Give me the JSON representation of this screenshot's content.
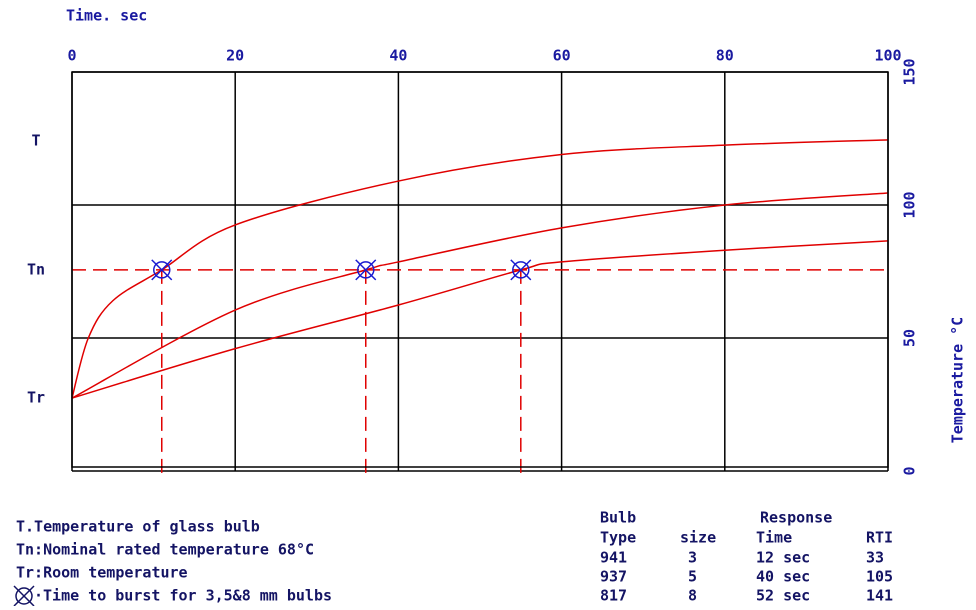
{
  "chart_data": {
    "type": "line",
    "x_axis_label": "Time. sec",
    "y_axis_label": "Temperature °C",
    "xlim": [
      0,
      100
    ],
    "xticks": [
      0,
      20,
      40,
      60,
      80,
      100
    ],
    "ylim": [
      0,
      150
    ],
    "yticks": [
      0,
      50,
      100,
      150
    ],
    "grid": true,
    "left_ticks": [
      {
        "value": 124,
        "label": "T"
      },
      {
        "value": 75.6,
        "label": "Tn"
      },
      {
        "value": 27.4,
        "label": "Tr"
      }
    ],
    "reference_line": {
      "y": 75.6,
      "color": "#e00000"
    },
    "series": [
      {
        "color": "#e00000",
        "x": [
          0,
          2,
          5,
          11,
          20,
          40,
          60,
          80,
          100
        ],
        "values": [
          27.4,
          50,
          64,
          75.6,
          92.5,
          109,
          119,
          122.5,
          124.5
        ]
      },
      {
        "color": "#e00000",
        "x": [
          0,
          20,
          36,
          40,
          60,
          80,
          100
        ],
        "values": [
          27.4,
          60.5,
          75.6,
          78.6,
          91.4,
          100,
          104.5
        ]
      },
      {
        "color": "#e00000",
        "x": [
          0,
          20,
          40,
          55,
          60,
          80,
          100
        ],
        "values": [
          27.4,
          46,
          62.4,
          75.6,
          78.6,
          83,
          86.5
        ]
      }
    ],
    "markers": {
      "color": "#1a1ad0",
      "x": [
        11,
        36,
        55
      ],
      "values": [
        75.6,
        75.6,
        75.6
      ]
    },
    "notes": [
      "T.Temperature of glass bulb",
      "Tn:Nominal rated temperature 68°C",
      "Tr:Room temperature",
      "·Time to burst for 3,5&8 mm bulbs"
    ],
    "table": {
      "header_top": [
        "Bulb",
        "Response"
      ],
      "header": [
        "Type",
        "size",
        "Time",
        "RTI"
      ],
      "rows": [
        [
          "941",
          "3",
          "12 sec",
          "33"
        ],
        [
          "937",
          "5",
          "40 sec",
          "105"
        ],
        [
          "817",
          "8",
          "52 sec",
          "141"
        ]
      ]
    }
  }
}
